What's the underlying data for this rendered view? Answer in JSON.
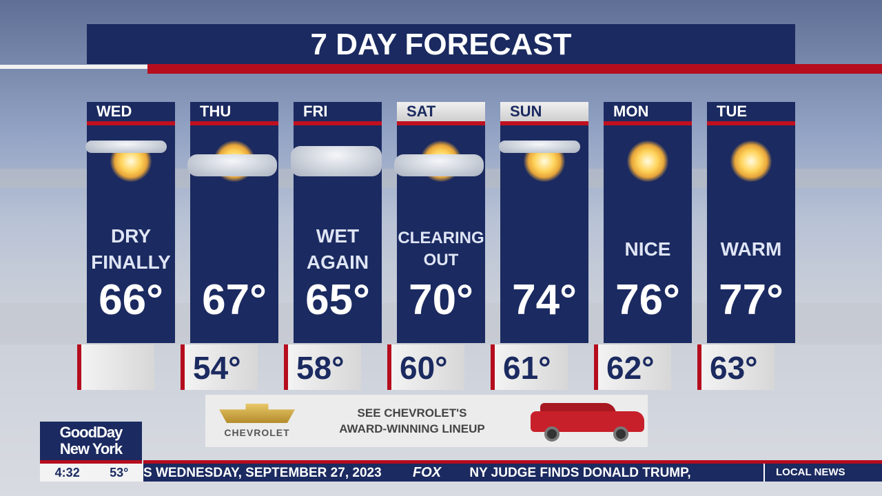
{
  "title": "7 DAY FORECAST",
  "days": [
    {
      "day": "WED",
      "desc": [
        "DRY",
        "FINALLY"
      ],
      "high": "66°",
      "low": "",
      "icon": "sun-with-thin-cloud-icon",
      "header_style": "dark"
    },
    {
      "day": "THU",
      "desc": [],
      "high": "67°",
      "low": "54°",
      "icon": "partly-cloudy-icon",
      "header_style": "dark"
    },
    {
      "day": "FRI",
      "desc": [
        "WET",
        "AGAIN"
      ],
      "high": "65°",
      "low": "58°",
      "icon": "cloudy-icon",
      "header_style": "dark"
    },
    {
      "day": "SAT",
      "desc": [
        "CLEARING",
        "OUT"
      ],
      "high": "70°",
      "low": "60°",
      "icon": "partly-cloudy-icon",
      "header_style": "light"
    },
    {
      "day": "SUN",
      "desc": [
        "",
        ""
      ],
      "high": "74°",
      "low": "61°",
      "icon": "sun-with-thin-cloud-icon",
      "header_style": "light"
    },
    {
      "day": "MON",
      "desc": [
        "NICE"
      ],
      "high": "76°",
      "low": "62°",
      "icon": "sun-icon",
      "header_style": "dark"
    },
    {
      "day": "TUE",
      "desc": [
        "WARM"
      ],
      "high": "77°",
      "low": "63°",
      "icon": "sun-icon",
      "header_style": "dark"
    }
  ],
  "ad": {
    "brand": "CHEVROLET",
    "line1": "SEE CHEVROLET'S",
    "line2": "AWARD-WINNING LINEUP"
  },
  "bug": {
    "line1": "GoodDay",
    "line2": "New York",
    "time": "4:32",
    "temp": "53°"
  },
  "ticker": {
    "text1": "S WEDNESDAY, SEPTEMBER 27, 2023",
    "network": "FOX",
    "text2": "NY JUDGE FINDS DONALD TRUMP,",
    "section": "LOCAL NEWS"
  },
  "colors": {
    "navy": "#1b2a60",
    "red": "#b50d1e"
  }
}
